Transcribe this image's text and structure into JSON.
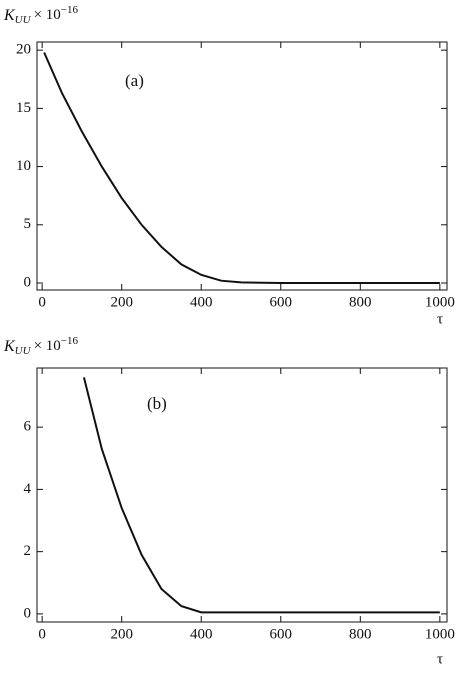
{
  "chart_data": [
    {
      "type": "line",
      "annotation": "(a)",
      "ylabel": {
        "base": "K",
        "sub": "UU",
        "mid": "× 10",
        "sup": "−16"
      },
      "xlabel": "τ",
      "series": [
        {
          "color": "#111111",
          "x": [
            5,
            50,
            100,
            150,
            200,
            250,
            300,
            350,
            400,
            450,
            500,
            600,
            700,
            800,
            900,
            1000
          ],
          "values": [
            19.8,
            16.3,
            13.0,
            10.0,
            7.3,
            5.0,
            3.1,
            1.6,
            0.7,
            0.2,
            0.05,
            0,
            0,
            0,
            0,
            0
          ]
        }
      ],
      "xlim": [
        -13,
        1018
      ],
      "ylim": [
        -0.6,
        20.7
      ],
      "xticks": [
        0,
        200,
        400,
        600,
        800,
        1000
      ],
      "yticks": [
        0,
        5,
        10,
        15,
        20
      ]
    },
    {
      "type": "line",
      "annotation": "(b)",
      "ylabel": {
        "base": "K",
        "sub": "UU",
        "mid": "× 10",
        "sup": "−16"
      },
      "xlabel": "τ",
      "series": [
        {
          "color": "#111111",
          "x": [
            105,
            150,
            200,
            250,
            300,
            350,
            400,
            500,
            600,
            700,
            800,
            900,
            1000
          ],
          "values": [
            7.6,
            5.3,
            3.4,
            1.9,
            0.8,
            0.25,
            0.05,
            0.05,
            0.05,
            0.05,
            0.05,
            0.05,
            0.05
          ]
        }
      ],
      "xlim": [
        -13,
        1018
      ],
      "ylim": [
        -0.26,
        7.9
      ],
      "xticks": [
        0,
        200,
        400,
        600,
        800,
        1000
      ],
      "yticks": [
        0,
        2,
        4,
        6
      ]
    }
  ]
}
